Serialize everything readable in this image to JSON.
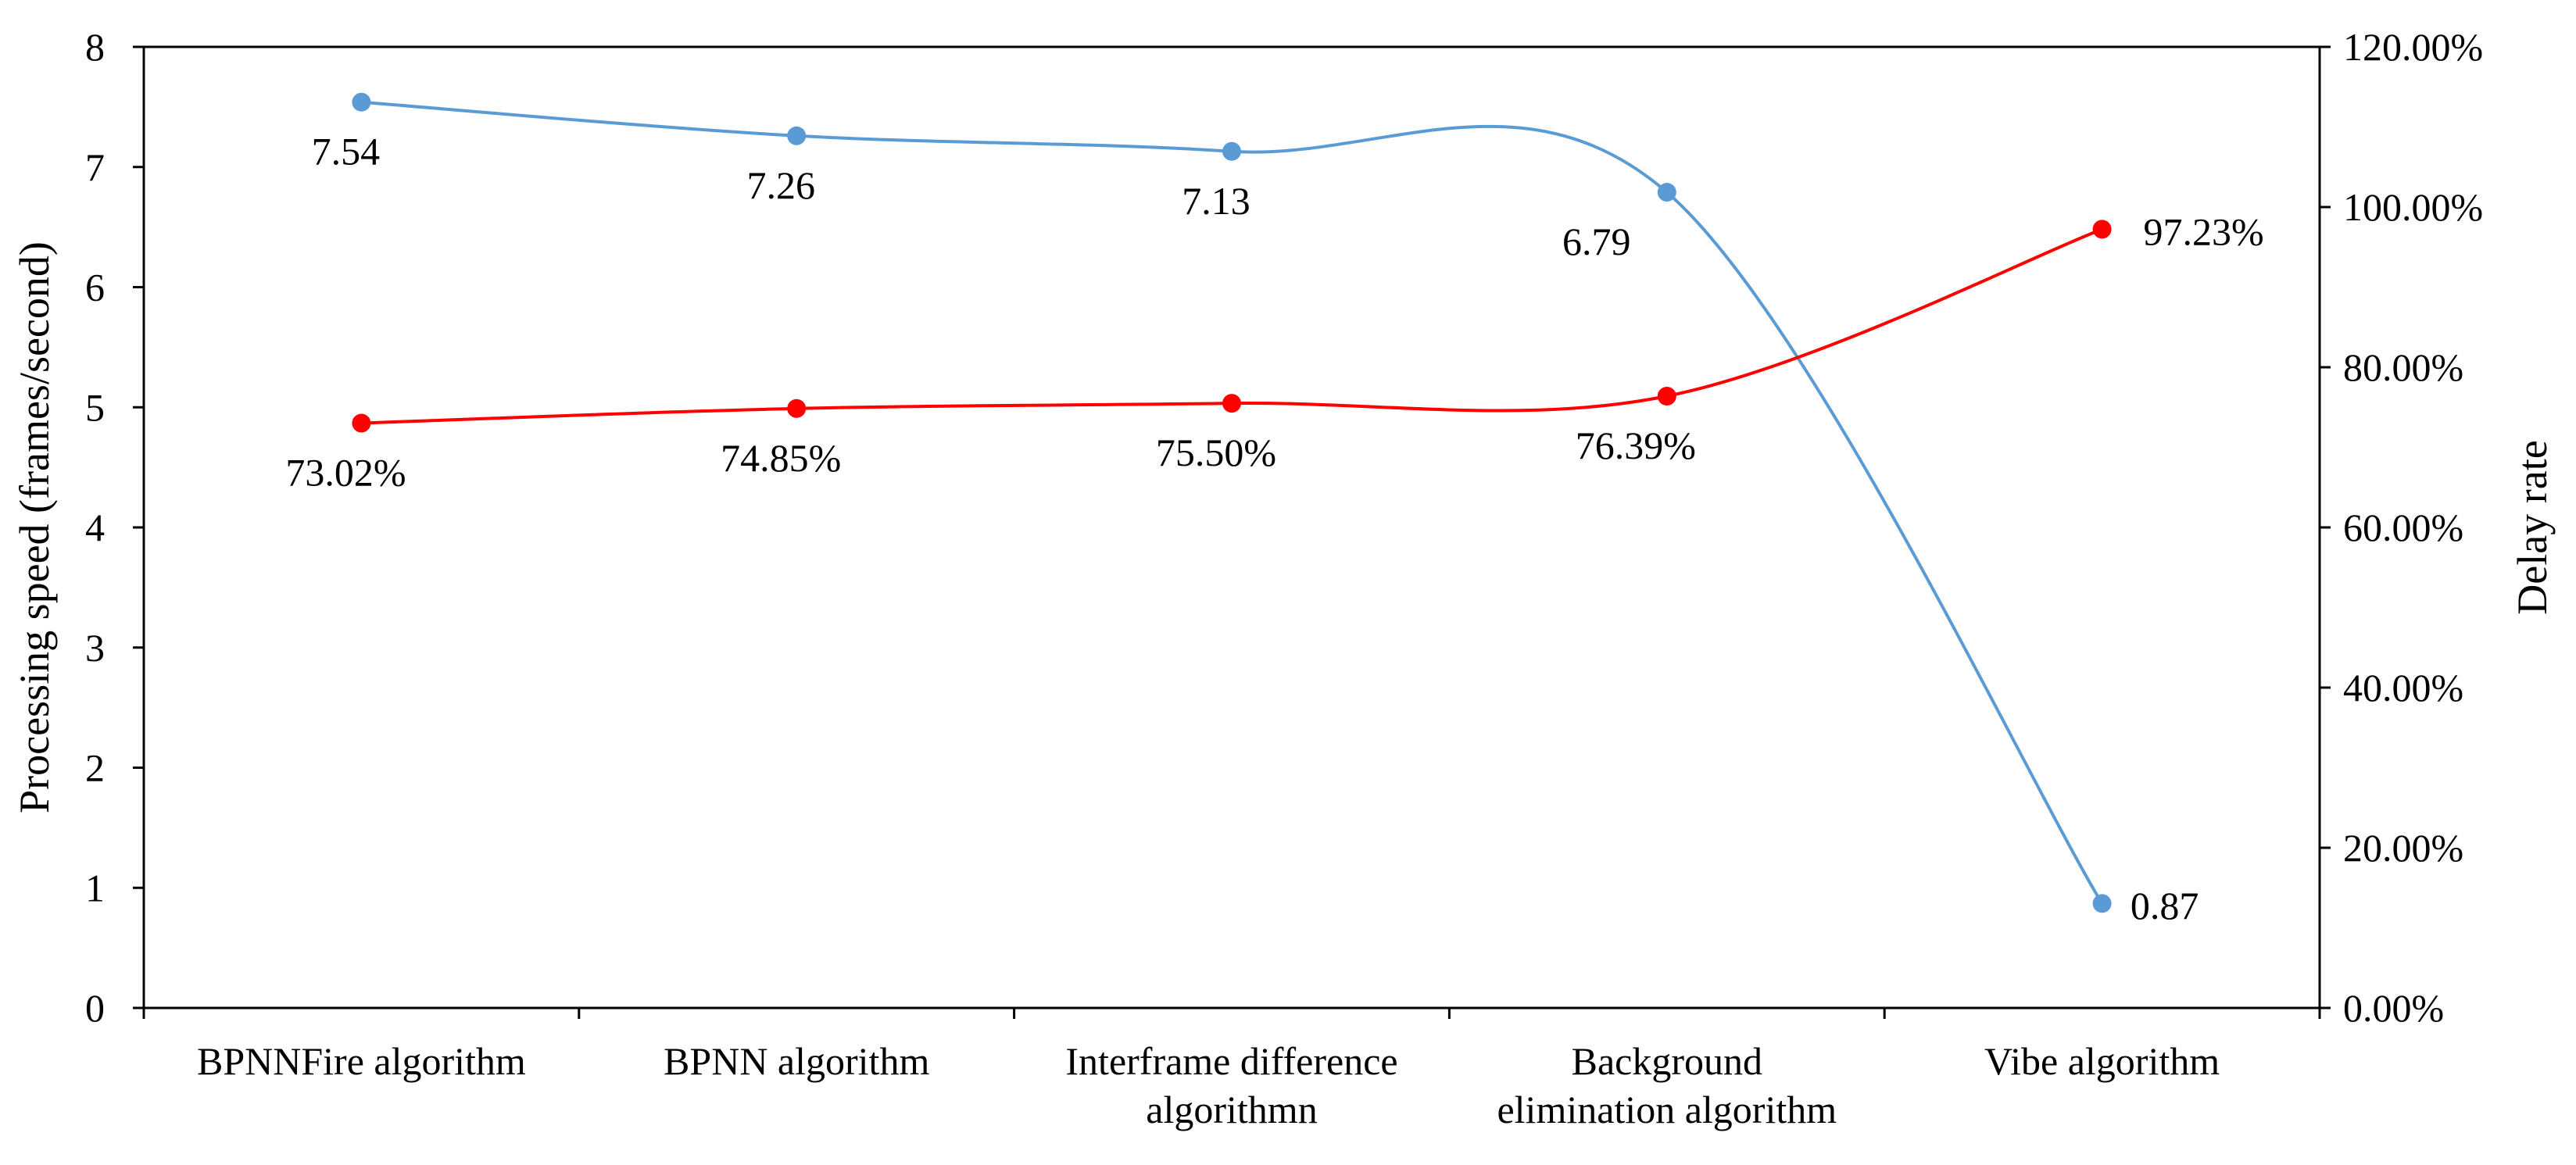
{
  "chart_data": {
    "type": "line",
    "categories": [
      [
        "BPNNFire algorithm"
      ],
      [
        "BPNN algorithm"
      ],
      [
        "Interframe difference",
        "algorithmn"
      ],
      [
        "Background",
        "elimination algorithm"
      ],
      [
        "Vibe algorithm"
      ]
    ],
    "series": [
      {
        "name": "Processing speed",
        "axis": "left",
        "color": "#5b9bd5",
        "values": [
          7.54,
          7.26,
          7.13,
          6.79,
          0.87
        ],
        "labels": [
          "7.54",
          "7.26",
          "7.13",
          "6.79",
          "0.87"
        ]
      },
      {
        "name": "Delay rate",
        "axis": "right",
        "color": "#ff0000",
        "values": [
          73.02,
          74.85,
          75.5,
          76.39,
          97.23
        ],
        "labels": [
          "73.02%",
          "74.85%",
          "75.50%",
          "76.39%",
          "97.23%"
        ]
      }
    ],
    "y_left": {
      "label": "Processing speed (frames/second)",
      "range": [
        0,
        8
      ],
      "ticks": [
        "0",
        "1",
        "2",
        "3",
        "4",
        "5",
        "6",
        "7",
        "8"
      ]
    },
    "y_right": {
      "label": "Delay rate",
      "range": [
        0,
        120
      ],
      "ticks": [
        "0.00%",
        "20.00%",
        "40.00%",
        "60.00%",
        "80.00%",
        "100.00%",
        "120.00%"
      ]
    },
    "grid": false,
    "legend": "none"
  }
}
